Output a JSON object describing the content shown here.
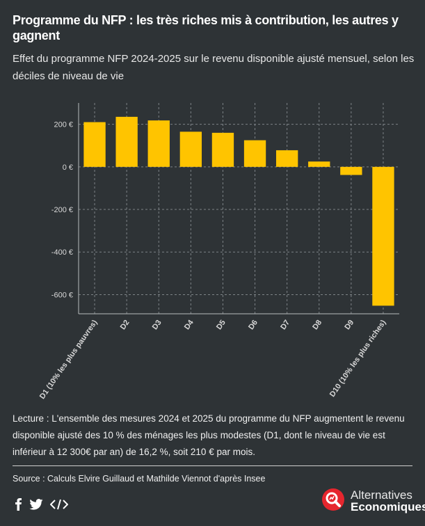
{
  "header": {
    "title": "Programme du NFP : les très riches mis à contribution, les autres y gagnent",
    "subtitle": "Effet du programme NFP 2024-2025 sur le revenu disponible ajusté mensuel, selon les déciles de niveau de vie"
  },
  "chart_data": {
    "type": "bar",
    "categories": [
      "D1 (10% les plus pauvres)",
      "D2",
      "D3",
      "D4",
      "D5",
      "D6",
      "D7",
      "D8",
      "D9",
      "D10 (10% les plus riches)"
    ],
    "values": [
      210,
      235,
      218,
      165,
      160,
      125,
      78,
      25,
      -38,
      -652
    ],
    "ylim": [
      -690,
      300
    ],
    "yticks": [
      200,
      0,
      -200,
      -400,
      -600
    ],
    "ytick_labels": [
      "200 €",
      "0 €",
      "-200 €",
      "-400 €",
      "-600 €"
    ],
    "bar_color": "#ffc400",
    "grid": true
  },
  "footer": {
    "reading": "Lecture : L'ensemble des mesures 2024 et 2025 du programme du NFP augmentent le revenu disponible ajusté des 10 % des ménages les plus modestes (D1, dont le niveau de vie est inférieur à 12 300€ par an) de 16,2 %, soit 210 € par mois.",
    "source": "Source : Calculs Elvire Guillaud et Mathilde Viennot d'après Insee"
  },
  "social": {
    "icons": [
      "facebook-icon",
      "twitter-icon",
      "embed-icon"
    ]
  },
  "brand": {
    "line1": "Alternatives",
    "line2": "Economiques",
    "color": "#e6262e"
  }
}
